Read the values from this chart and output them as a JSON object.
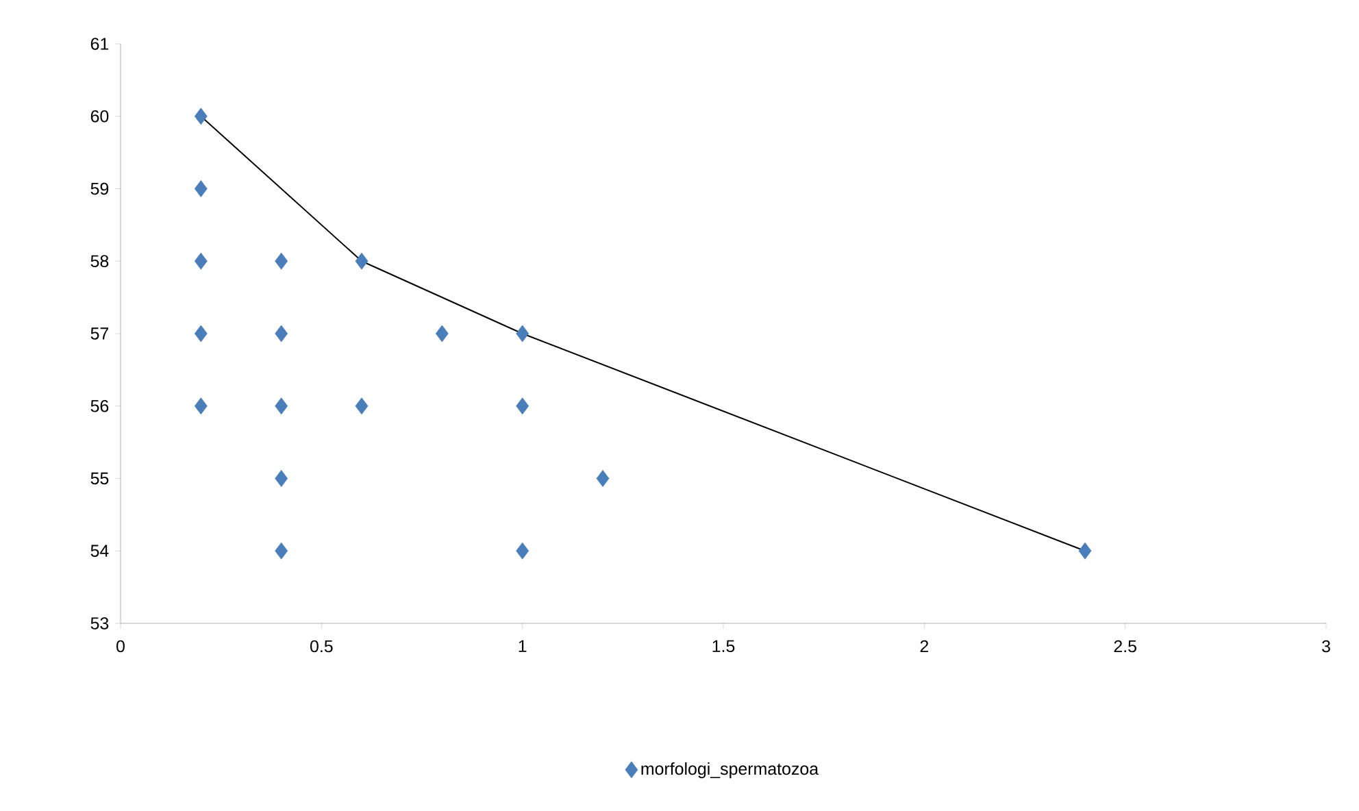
{
  "chart_data": {
    "type": "scatter",
    "series": [
      {
        "name": "morfologi_spermatozoa",
        "color": "#4a7ebb",
        "marker": "diamond",
        "x": [
          0.2,
          0.2,
          0.2,
          0.2,
          0.2,
          0.4,
          0.4,
          0.4,
          0.4,
          0.4,
          0.6,
          0.6,
          0.8,
          1,
          1,
          1,
          1.2,
          2.4
        ],
        "values": [
          60,
          59,
          58,
          57,
          56,
          58,
          57,
          56,
          55,
          54,
          58,
          56,
          57,
          57,
          56,
          54,
          55,
          54
        ]
      },
      {
        "type": "line",
        "color": "#000000",
        "marker": "none",
        "x": [
          0.2,
          0.6,
          1,
          2.4
        ],
        "values": [
          60,
          58,
          57,
          54
        ]
      }
    ],
    "xlim": [
      0,
      3
    ],
    "ylim": [
      53,
      61
    ],
    "xticks": [
      0,
      0.5,
      1,
      1.5,
      2,
      2.5,
      3
    ],
    "yticks": [
      53,
      54,
      55,
      56,
      57,
      58,
      59,
      60,
      61
    ],
    "grid": false,
    "legend": "bottom"
  }
}
